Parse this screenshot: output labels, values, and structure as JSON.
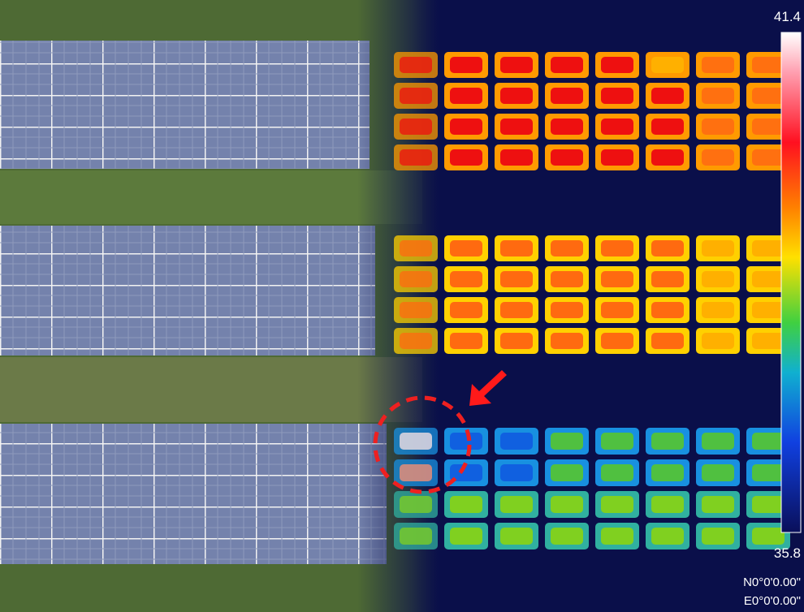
{
  "colorbar": {
    "max": "41.4",
    "min": "35.8"
  },
  "coordinates": {
    "latitude": "N0°0'0.00\"",
    "longitude": "E0°0'0.00\""
  }
}
